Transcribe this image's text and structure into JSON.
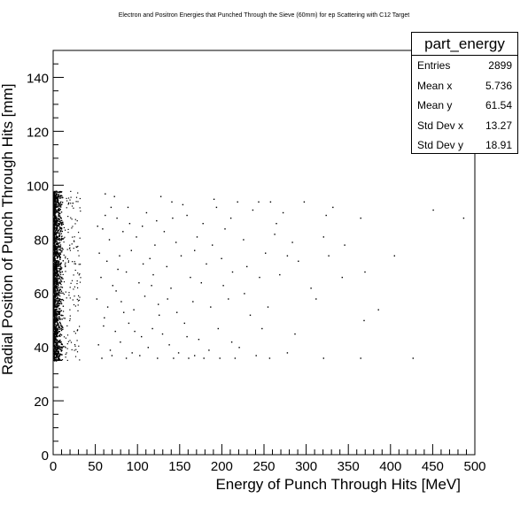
{
  "chart_data": {
    "type": "scatter",
    "title": "Electron and Positron Energies that Punched Through the Sieve (60mm) for ep Scattering with C12 Target",
    "xlabel": "Energy of Punch Through Hits [MeV]",
    "ylabel": "Radial Position of Punch Through Hits [mm]",
    "xlim": [
      0,
      500
    ],
    "ylim": [
      0,
      150
    ],
    "x_ticks": [
      "0",
      "50",
      "100",
      "150",
      "200",
      "250",
      "300",
      "350",
      "400",
      "450",
      "500"
    ],
    "y_ticks": [
      "0",
      "20",
      "40",
      "60",
      "80",
      "100",
      "120",
      "140"
    ],
    "grid": false,
    "stats": {
      "name": "part_energy",
      "rows": [
        {
          "label": "Entries",
          "value": "2899"
        },
        {
          "label": "Mean x",
          "value": "5.736"
        },
        {
          "label": "Mean y",
          "value": "61.54"
        },
        {
          "label": "Std Dev x",
          "value": "13.27"
        },
        {
          "label": "Std Dev y",
          "value": "18.91"
        }
      ]
    },
    "points": [
      [
        61,
        97
      ],
      [
        72,
        96
      ],
      [
        127,
        96
      ],
      [
        140,
        94
      ],
      [
        153,
        93
      ],
      [
        190,
        95
      ],
      [
        243,
        94
      ],
      [
        257,
        94
      ],
      [
        297,
        94
      ],
      [
        331,
        92
      ],
      [
        323,
        89
      ],
      [
        364,
        88
      ],
      [
        450,
        91
      ],
      [
        486,
        88
      ],
      [
        75,
        88
      ],
      [
        88,
        92
      ],
      [
        110,
        90
      ],
      [
        122,
        87
      ],
      [
        158,
        89
      ],
      [
        177,
        86
      ],
      [
        193,
        92
      ],
      [
        210,
        88
      ],
      [
        218,
        94
      ],
      [
        236,
        91
      ],
      [
        272,
        90
      ],
      [
        58,
        84
      ],
      [
        66,
        80
      ],
      [
        82,
        83
      ],
      [
        98,
        81
      ],
      [
        105,
        85
      ],
      [
        131,
        83
      ],
      [
        145,
        79
      ],
      [
        170,
        81
      ],
      [
        188,
        78
      ],
      [
        203,
        84
      ],
      [
        225,
        80
      ],
      [
        262,
        82
      ],
      [
        283,
        79
      ],
      [
        320,
        81
      ],
      [
        345,
        78
      ],
      [
        54,
        75
      ],
      [
        63,
        72
      ],
      [
        78,
        74
      ],
      [
        92,
        76
      ],
      [
        114,
        73
      ],
      [
        134,
        70
      ],
      [
        151,
        74
      ],
      [
        181,
        71
      ],
      [
        199,
        73
      ],
      [
        229,
        70
      ],
      [
        251,
        75
      ],
      [
        290,
        72
      ],
      [
        326,
        74
      ],
      [
        404,
        74
      ],
      [
        56,
        66
      ],
      [
        70,
        63
      ],
      [
        86,
        68
      ],
      [
        101,
        64
      ],
      [
        118,
        67
      ],
      [
        139,
        62
      ],
      [
        162,
        66
      ],
      [
        175,
        64
      ],
      [
        212,
        68
      ],
      [
        244,
        66
      ],
      [
        268,
        67
      ],
      [
        305,
        62
      ],
      [
        369,
        68
      ],
      [
        51,
        58
      ],
      [
        64,
        55
      ],
      [
        80,
        57
      ],
      [
        95,
        54
      ],
      [
        108,
        59
      ],
      [
        124,
        56
      ],
      [
        146,
        53
      ],
      [
        165,
        57
      ],
      [
        186,
        55
      ],
      [
        207,
        58
      ],
      [
        233,
        52
      ],
      [
        254,
        55
      ],
      [
        59,
        48
      ],
      [
        73,
        46
      ],
      [
        89,
        49
      ],
      [
        104,
        44
      ],
      [
        117,
        47
      ],
      [
        129,
        45
      ],
      [
        155,
        49
      ],
      [
        172,
        43
      ],
      [
        195,
        47
      ],
      [
        247,
        47
      ],
      [
        286,
        45
      ],
      [
        368,
        50
      ],
      [
        53,
        41
      ],
      [
        67,
        39
      ],
      [
        79,
        42
      ],
      [
        93,
        38
      ],
      [
        112,
        40
      ],
      [
        137,
        41
      ],
      [
        148,
        38
      ],
      [
        167,
        37
      ],
      [
        184,
        39
      ],
      [
        220,
        40
      ],
      [
        240,
        37
      ],
      [
        57,
        36
      ],
      [
        69,
        37
      ],
      [
        86,
        36
      ],
      [
        102,
        37
      ],
      [
        123,
        36
      ],
      [
        142,
        36
      ],
      [
        160,
        36
      ],
      [
        178,
        36
      ],
      [
        197,
        36
      ],
      [
        215,
        36
      ],
      [
        256,
        36
      ],
      [
        277,
        38
      ],
      [
        320,
        36
      ],
      [
        364,
        36
      ],
      [
        426,
        36
      ],
      [
        52,
        85
      ],
      [
        60,
        51
      ],
      [
        74,
        61
      ],
      [
        96,
        46
      ],
      [
        120,
        78
      ],
      [
        158,
        44
      ],
      [
        226,
        60
      ],
      [
        311,
        58
      ],
      [
        277,
        74
      ],
      [
        211,
        42
      ],
      [
        135,
        58
      ],
      [
        83,
        53
      ],
      [
        61,
        89
      ],
      [
        68,
        92
      ],
      [
        76,
        69
      ],
      [
        90,
        86
      ],
      [
        106,
        71
      ],
      [
        116,
        63
      ],
      [
        125,
        52
      ],
      [
        141,
        88
      ],
      [
        167,
        76
      ],
      [
        201,
        63
      ],
      [
        264,
        86
      ],
      [
        342,
        66
      ],
      [
        385,
        54
      ]
    ]
  }
}
